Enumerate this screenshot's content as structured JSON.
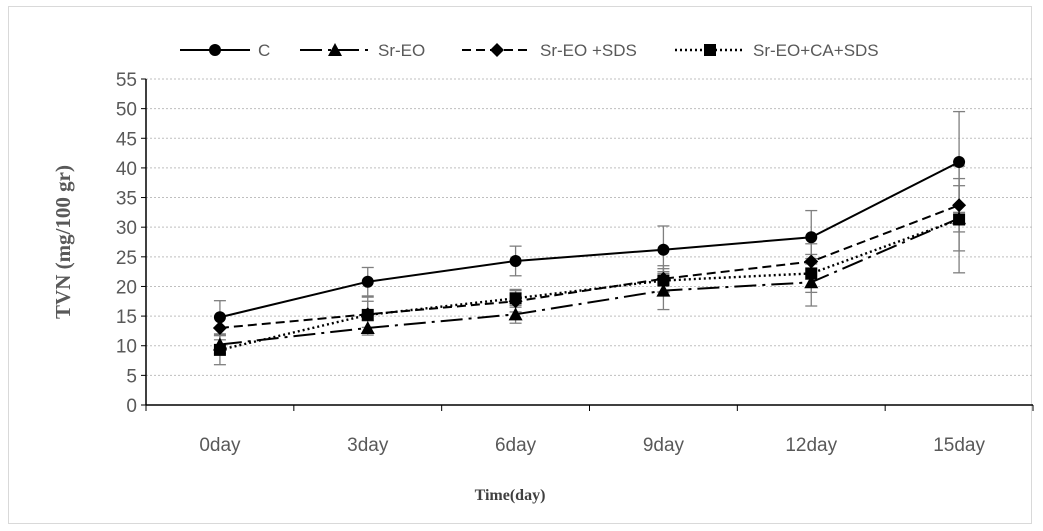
{
  "chart_data": {
    "type": "line",
    "title": "",
    "xlabel": "Time(day)",
    "ylabel": "TVN (mg/100 gr)",
    "ylim": [
      0,
      55
    ],
    "yticks": [
      0,
      5,
      10,
      15,
      20,
      25,
      30,
      35,
      40,
      45,
      50,
      55
    ],
    "grid": true,
    "legend_position": "top",
    "categories": [
      "0day",
      "3day",
      "6day",
      "9day",
      "12day",
      "15day"
    ],
    "series": [
      {
        "name": "C",
        "marker": "circle",
        "dash": "solid",
        "values": [
          14.8,
          20.8,
          24.3,
          26.2,
          28.3,
          41.0
        ],
        "errors": [
          2.8,
          2.4,
          2.5,
          4.0,
          4.5,
          8.5
        ]
      },
      {
        "name": "Sr-EO",
        "marker": "triangle",
        "dash": "longdashdot",
        "values": [
          10.2,
          13.0,
          15.3,
          19.3,
          20.7,
          31.5
        ],
        "errors": [
          1.5,
          1.2,
          1.5,
          3.2,
          4.0,
          5.5
        ]
      },
      {
        "name": "Sr-EO +SDS",
        "marker": "diamond",
        "dash": "dash",
        "values": [
          13.0,
          15.3,
          17.5,
          21.3,
          24.2,
          33.7
        ],
        "errors": [
          2.0,
          2.2,
          1.8,
          2.2,
          3.0,
          4.5
        ]
      },
      {
        "name": "Sr-EO+CA+SDS",
        "marker": "square",
        "dash": "dot",
        "values": [
          9.3,
          15.2,
          18.0,
          21.0,
          22.2,
          31.3
        ],
        "errors": [
          2.5,
          3.0,
          1.5,
          2.0,
          3.2,
          9.0
        ]
      }
    ]
  }
}
